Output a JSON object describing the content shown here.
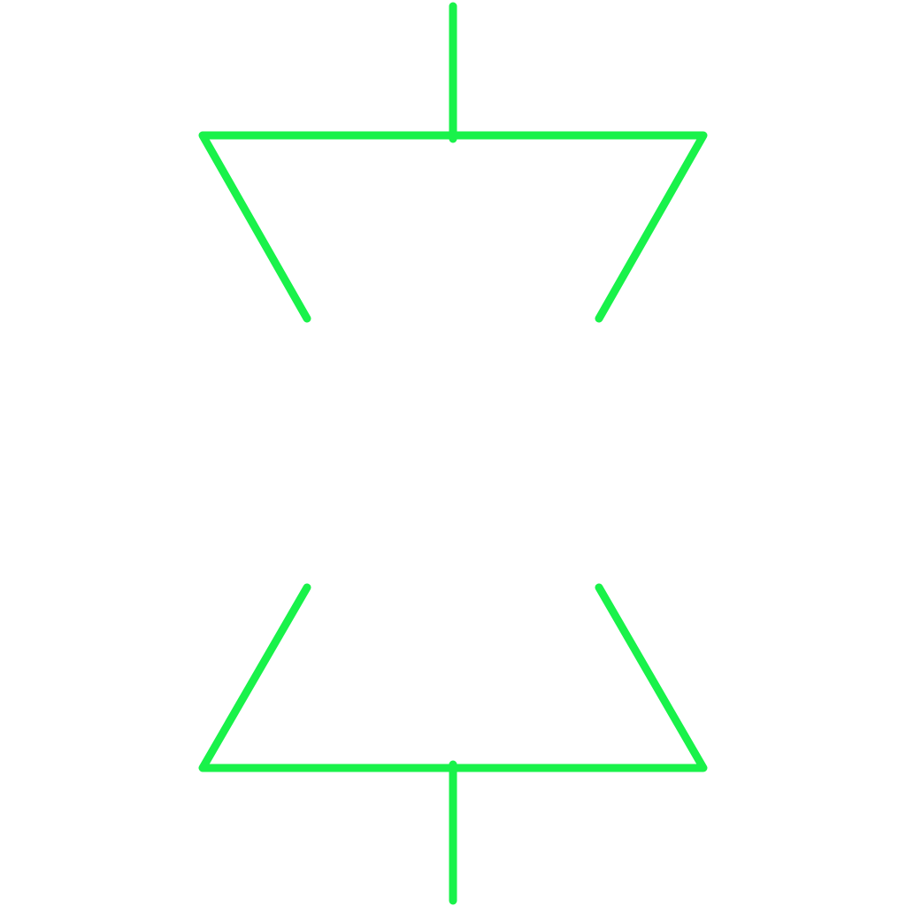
{
  "symbol": {
    "icon": "hourglass-outline-icon",
    "stroke_color": "#19f24a",
    "background_color": "#ffffff"
  }
}
